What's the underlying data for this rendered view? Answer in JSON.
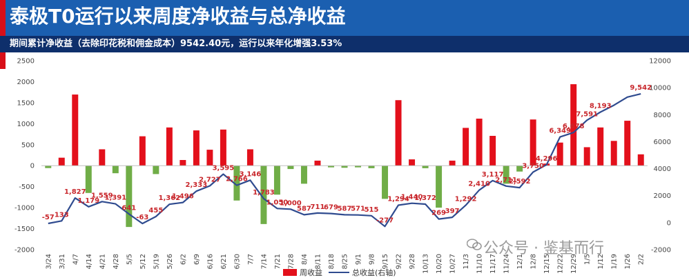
{
  "title": "泰极T0运行以来周度净收益与总净收益",
  "subtitle": "期间累计净收益（去除印花税和佣金成本）9542.40元，运行以来年化增强3.53%",
  "watermark": "公众号 · 鉴基而行",
  "colors": {
    "bar": "#e3101b",
    "bar_negative": "#70ad47",
    "line": "#2f4b8f",
    "header": "#1b5fb0",
    "subheader": "#0e2f6b",
    "label": "#c8262b"
  },
  "chart_data": {
    "type": "bar",
    "categories": [
      "3/24",
      "3/31",
      "4/7",
      "4/14",
      "4/21",
      "4/28",
      "5/5",
      "5/12",
      "5/19",
      "5/26",
      "6/2",
      "6/9",
      "6/16",
      "6/21",
      "6/30",
      "7/7",
      "7/14",
      "7/21",
      "7/28",
      "8/4",
      "8/11",
      "8/18",
      "8/25",
      "9/1",
      "9/8",
      "9/15",
      "9/22",
      "9/28",
      "10/13",
      "10/20",
      "10/27",
      "11/3",
      "11/10",
      "11/17",
      "11/24",
      "12/1",
      "12/8",
      "12/15",
      "12/22",
      "12/29",
      "1/5",
      "1/12",
      "1/19",
      "1/26",
      "2/2"
    ],
    "x_tick_labels": [
      "3/24",
      "3/31",
      "4/7",
      "4/14",
      "4/21",
      "4/28",
      "5/5",
      "5/12",
      "5/19",
      "5/26",
      "6/2",
      "6/9",
      "6/16",
      "6/21",
      "6/30",
      "7/7",
      "7/14",
      "7/21",
      "7/28",
      "8/4",
      "8/11",
      "8/18",
      "8/25",
      "9/1",
      "9/8",
      "9/15",
      "9/22",
      "9/28",
      "10/13",
      "10/20",
      "10/27",
      "11/3",
      "11/10",
      "11/17",
      "11/24",
      "12/1",
      "12/8",
      "12/15",
      "12/22",
      "12/29",
      "1/5",
      "1/12",
      "1/19",
      "1/26",
      "2/2"
    ],
    "series": [
      {
        "name": "周收益",
        "type": "bar",
        "axis": "left",
        "values": [
          -57,
          190,
          1694,
          -650,
          390,
          -180,
          -1460,
          700,
          -200,
          910,
          135,
          840,
          380,
          860,
          -830,
          390,
          -1390,
          -690,
          -80,
          -430,
          120,
          -40,
          -50,
          -40,
          -60,
          -790,
          1560,
          150,
          -60,
          -1000,
          120,
          900,
          1120,
          710,
          -430,
          -140,
          1100,
          50,
          550,
          1940,
          440,
          910,
          590,
          1070,
          270
        ]
      },
      {
        "name": "总收益(右轴)",
        "type": "line",
        "axis": "right",
        "values": [
          -57,
          133,
          1827,
          1179,
          1559,
          1391,
          641,
          -63,
          455,
          1362,
          1496,
          2333,
          2727,
          3595,
          2766,
          3146,
          1783,
          1050,
          1000,
          587,
          711,
          679,
          587,
          571,
          515,
          -277,
          1294,
          1440,
          1372,
          269,
          397,
          1292,
          2410,
          3117,
          2711,
          2592,
          3750,
          4296,
          6349,
          6678,
          7591,
          8193,
          8700,
          9300,
          9542
        ],
        "data_labels": [
          "-57",
          "133",
          "1,827",
          "1,179",
          "1,559",
          "1,391",
          "641",
          "-63",
          "455",
          "1,362",
          "1,496",
          "2,333",
          "2,727",
          "3,595",
          "2,766",
          "3,146",
          "1,783",
          "1,050",
          "1,000",
          "587",
          "711",
          "679",
          "587",
          "571",
          "515",
          "-277",
          "1,294",
          "1,440",
          "1,372",
          "269",
          "397",
          "1,292",
          "2,410",
          "3,117",
          "2,711",
          "2,592",
          "3,750",
          "4,296",
          "6,349",
          "6,678",
          "7,591",
          "8,193",
          "",
          "",
          "9,542"
        ]
      }
    ],
    "y_left": {
      "ticks": [
        "2500",
        "2000",
        "1500",
        "1000",
        "500",
        "0",
        "-500",
        "-1000",
        "-1500",
        "-2000"
      ],
      "range": [
        -2000,
        2500
      ]
    },
    "y_right": {
      "ticks": [
        "12000",
        "10000",
        "8000",
        "6000",
        "4000",
        "2000",
        "0",
        "-2000"
      ],
      "range": [
        -2000,
        12000
      ]
    },
    "legend": [
      {
        "label": "周收益",
        "kind": "bar"
      },
      {
        "label": "总收益(右轴)",
        "kind": "line"
      }
    ],
    "legend_position": "bottom",
    "grid": false
  }
}
